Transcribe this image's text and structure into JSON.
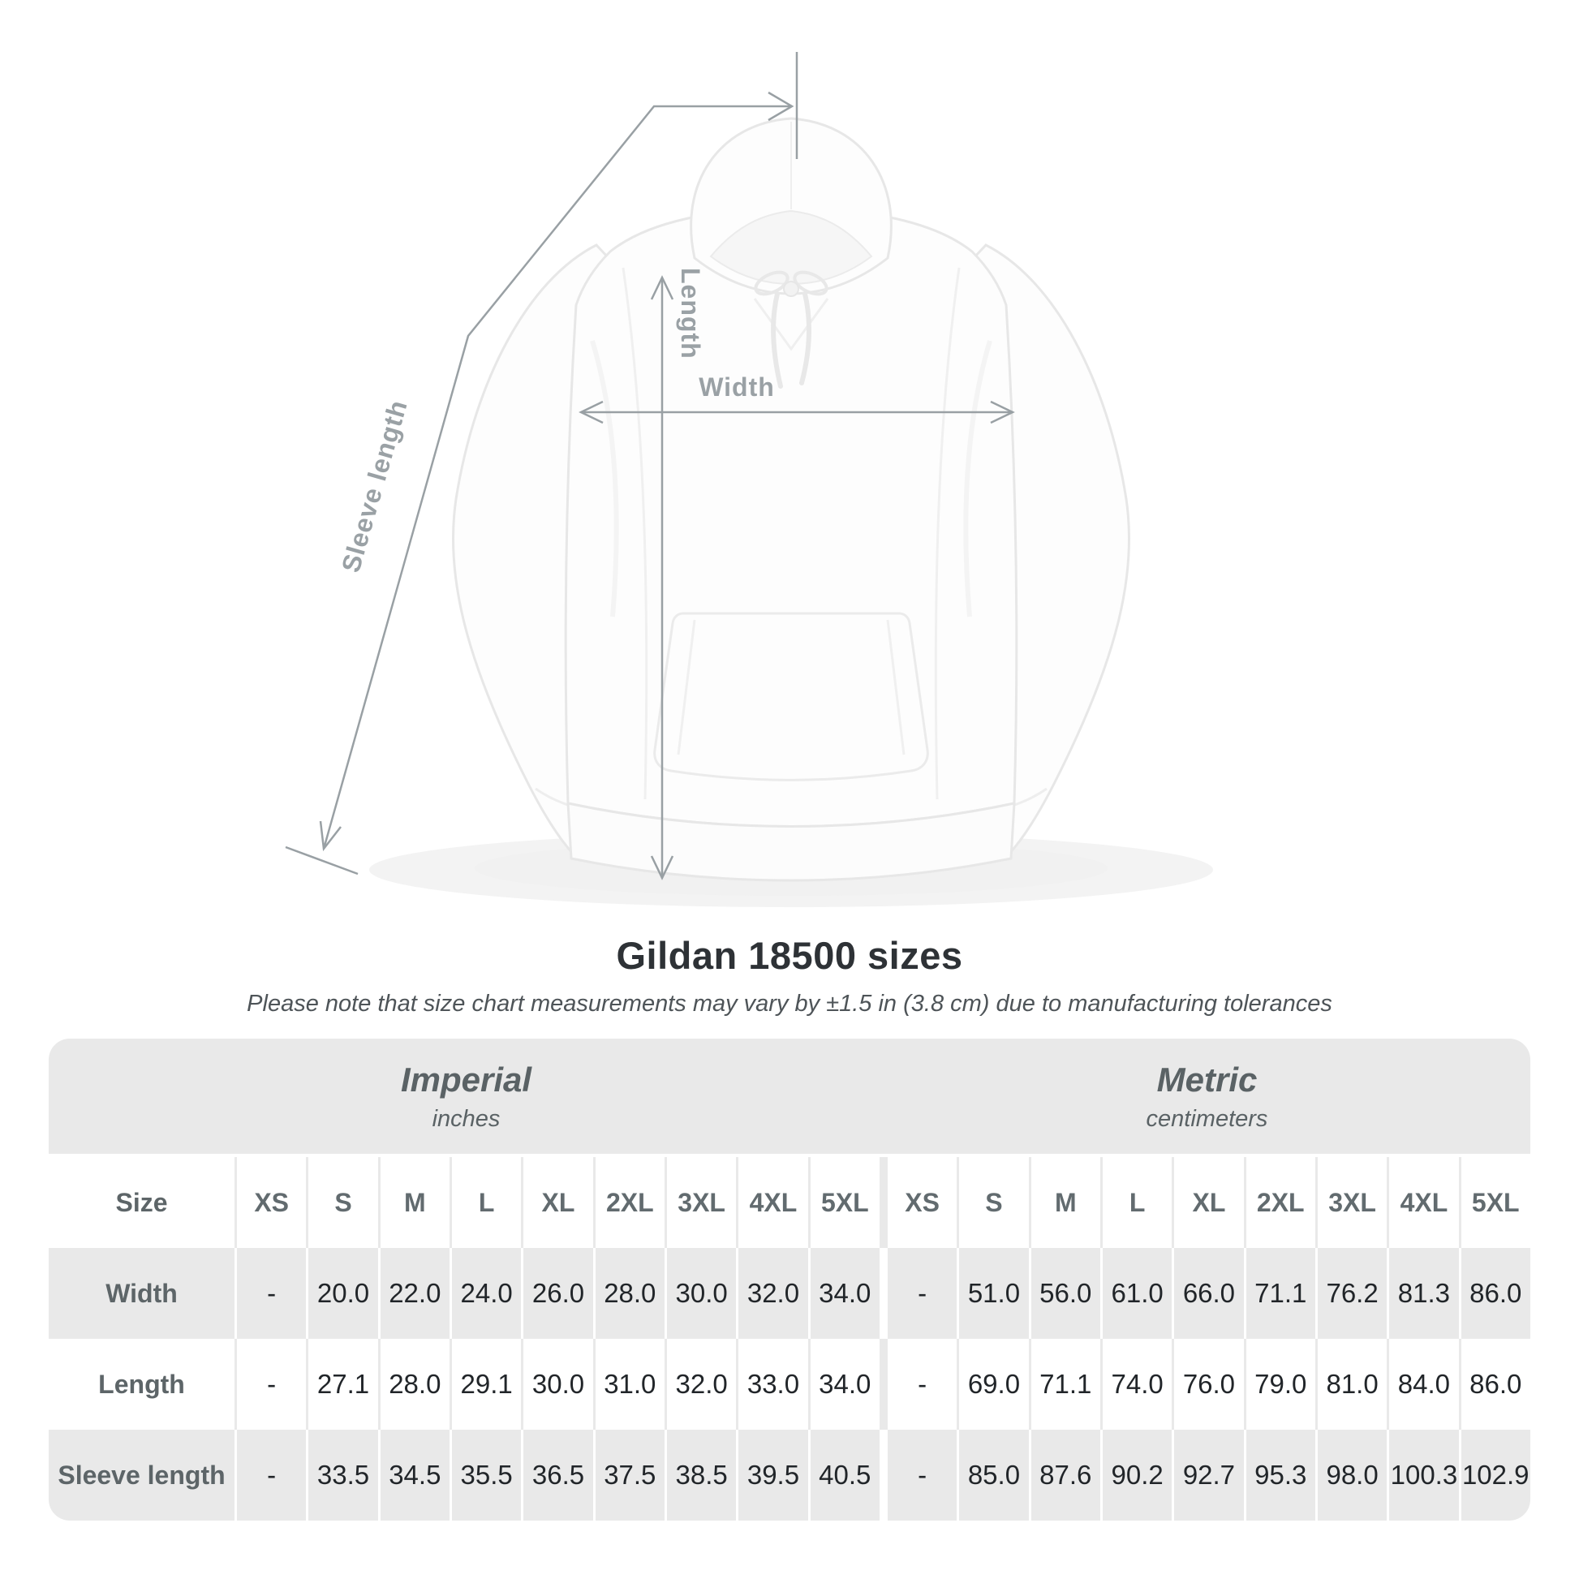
{
  "diagram": {
    "labels": {
      "sleeve_length": "Sleeve length",
      "length": "Length",
      "width": "Width"
    }
  },
  "title": "Gildan 18500 sizes",
  "subtitle": "Please note that size chart measurements may vary by ±1.5 in (3.8 cm) due to manufacturing tolerances",
  "size_chart": {
    "unit_groups": [
      {
        "name": "Imperial",
        "unit": "inches"
      },
      {
        "name": "Metric",
        "unit": "centimeters"
      }
    ],
    "size_column_label": "Size",
    "sizes": [
      "XS",
      "S",
      "M",
      "L",
      "XL",
      "2XL",
      "3XL",
      "4XL",
      "5XL"
    ],
    "rows": [
      {
        "label": "Width",
        "imperial": [
          "-",
          "20.0",
          "22.0",
          "24.0",
          "26.0",
          "28.0",
          "30.0",
          "32.0",
          "34.0"
        ],
        "metric": [
          "-",
          "51.0",
          "56.0",
          "61.0",
          "66.0",
          "71.1",
          "76.2",
          "81.3",
          "86.0"
        ]
      },
      {
        "label": "Length",
        "imperial": [
          "-",
          "27.1",
          "28.0",
          "29.1",
          "30.0",
          "31.0",
          "32.0",
          "33.0",
          "34.0"
        ],
        "metric": [
          "-",
          "69.0",
          "71.1",
          "74.0",
          "76.0",
          "79.0",
          "81.0",
          "84.0",
          "86.0"
        ]
      },
      {
        "label": "Sleeve length",
        "imperial": [
          "-",
          "33.5",
          "34.5",
          "35.5",
          "36.5",
          "37.5",
          "38.5",
          "39.5",
          "40.5"
        ],
        "metric": [
          "-",
          "85.0",
          "87.6",
          "90.2",
          "92.7",
          "95.3",
          "98.0",
          "100.3",
          "102.9"
        ]
      }
    ]
  },
  "colors": {
    "table_band": "#e9e9e9",
    "heading_text": "#5d6568",
    "value_text": "#212529",
    "diagram_line": "#99a0a4",
    "diagram_label": "#9aa1a5",
    "hoodie_outline": "#e7e7e7"
  }
}
